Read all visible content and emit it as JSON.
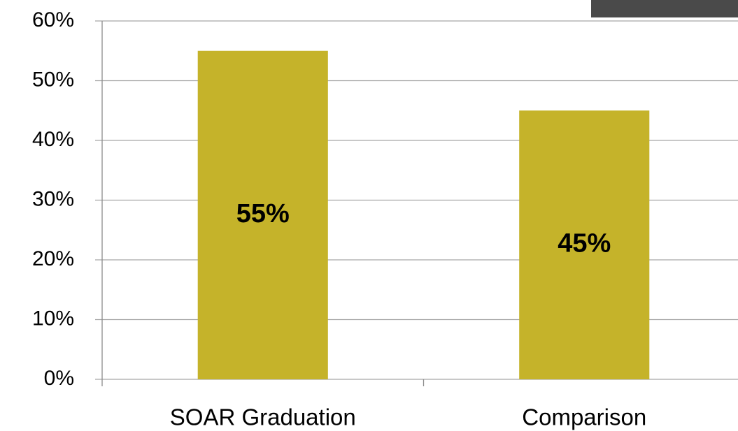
{
  "chart_data": {
    "type": "bar",
    "categories": [
      "SOAR Graduation",
      "Comparison"
    ],
    "values": [
      55,
      45
    ],
    "value_labels": [
      "55%",
      "45%"
    ],
    "color": "#c5b32a",
    "ylim": [
      0,
      60
    ],
    "yticks": [
      {
        "value": 0,
        "label": "0%"
      },
      {
        "value": 10,
        "label": "10%"
      },
      {
        "value": 20,
        "label": "20%"
      },
      {
        "value": 30,
        "label": "30%"
      },
      {
        "value": 40,
        "label": "40%"
      },
      {
        "value": 50,
        "label": "50%"
      },
      {
        "value": 60,
        "label": "60%"
      }
    ],
    "grid": true
  }
}
